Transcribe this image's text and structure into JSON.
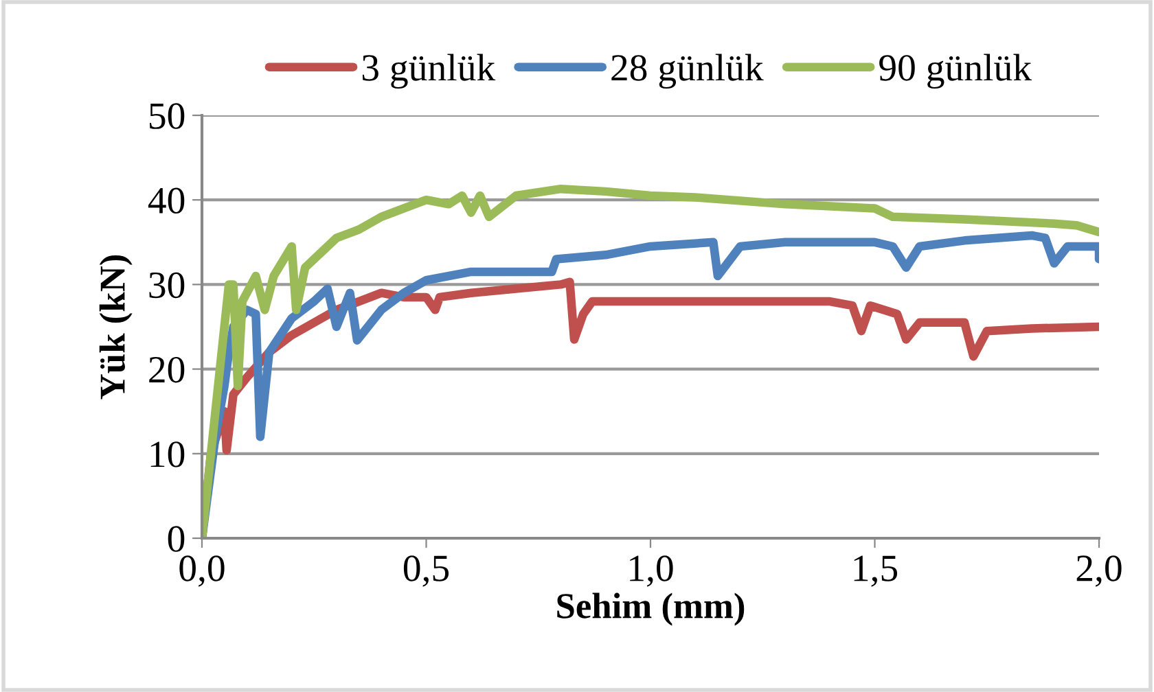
{
  "chart_data": {
    "type": "line",
    "xlabel": "Sehim (mm)",
    "ylabel": "Yük (kN)",
    "xlim": [
      0,
      2
    ],
    "ylim": [
      0,
      50
    ],
    "xticks": [
      {
        "value": 0,
        "label": "0,0"
      },
      {
        "value": 0.5,
        "label": "0,5"
      },
      {
        "value": 1,
        "label": "1,0"
      },
      {
        "value": 1.5,
        "label": "1,5"
      },
      {
        "value": 2,
        "label": "2,0"
      }
    ],
    "yticks": [
      0,
      10,
      20,
      30,
      40,
      50
    ],
    "grid": "y",
    "legend": "top",
    "marker": "none",
    "line_style": "solid",
    "series": [
      {
        "name": "3 günlük",
        "color": "#c0504d",
        "x": [
          0,
          0.02,
          0.05,
          0.055,
          0.07,
          0.1,
          0.15,
          0.2,
          0.25,
          0.3,
          0.35,
          0.4,
          0.45,
          0.5,
          0.52,
          0.53,
          0.6,
          0.7,
          0.8,
          0.82,
          0.83,
          0.85,
          0.87,
          1.0,
          1.2,
          1.4,
          1.45,
          1.47,
          1.49,
          1.55,
          1.57,
          1.6,
          1.7,
          1.72,
          1.75,
          1.85,
          2.0
        ],
        "values": [
          0,
          10,
          15,
          10.4,
          17,
          19,
          22,
          24,
          25.5,
          27,
          28,
          29,
          28.5,
          28.5,
          27,
          28.5,
          29,
          29.5,
          30,
          30.3,
          23.5,
          26.5,
          28,
          28,
          28,
          28,
          27.5,
          24.5,
          27.5,
          26.5,
          23.5,
          25.5,
          25.5,
          21.5,
          24.5,
          24.8,
          25
        ]
      },
      {
        "name": "28 günlük",
        "color": "#4f81bd",
        "x": [
          0,
          0.03,
          0.05,
          0.06,
          0.07,
          0.1,
          0.12,
          0.13,
          0.15,
          0.2,
          0.25,
          0.28,
          0.3,
          0.33,
          0.346,
          0.4,
          0.45,
          0.5,
          0.6,
          0.78,
          0.79,
          0.9,
          1.0,
          1.14,
          1.15,
          1.2,
          1.3,
          1.5,
          1.54,
          1.57,
          1.6,
          1.7,
          1.85,
          1.88,
          1.9,
          1.93,
          2.0,
          2.0
        ],
        "values": [
          0,
          12,
          18,
          22,
          25,
          27,
          26.5,
          12,
          22,
          26,
          28,
          29.5,
          25,
          29,
          23.4,
          27,
          29,
          30.5,
          31.5,
          31.5,
          33,
          33.5,
          34.5,
          35,
          31,
          34.5,
          35,
          35,
          34.5,
          32,
          34.5,
          35.2,
          35.8,
          35.5,
          32.5,
          34.5,
          34.5,
          33
        ]
      },
      {
        "name": "90 günlük",
        "color": "#9bbb59",
        "x": [
          0,
          0.03,
          0.06,
          0.07,
          0.08,
          0.09,
          0.12,
          0.14,
          0.16,
          0.2,
          0.21,
          0.23,
          0.27,
          0.3,
          0.35,
          0.4,
          0.5,
          0.55,
          0.58,
          0.6,
          0.62,
          0.64,
          0.7,
          0.8,
          0.9,
          1.0,
          1.1,
          1.3,
          1.5,
          1.54,
          1.7,
          1.9,
          1.95,
          2.0
        ],
        "values": [
          0,
          15,
          30,
          30,
          18,
          28,
          31,
          27,
          31,
          34.5,
          27,
          32,
          34,
          35.5,
          36.5,
          38,
          40,
          39.5,
          40.5,
          38.5,
          40.5,
          38,
          40.5,
          41.3,
          41,
          40.5,
          40.3,
          39.5,
          39,
          38,
          37.7,
          37.2,
          37,
          36.2
        ]
      }
    ]
  }
}
